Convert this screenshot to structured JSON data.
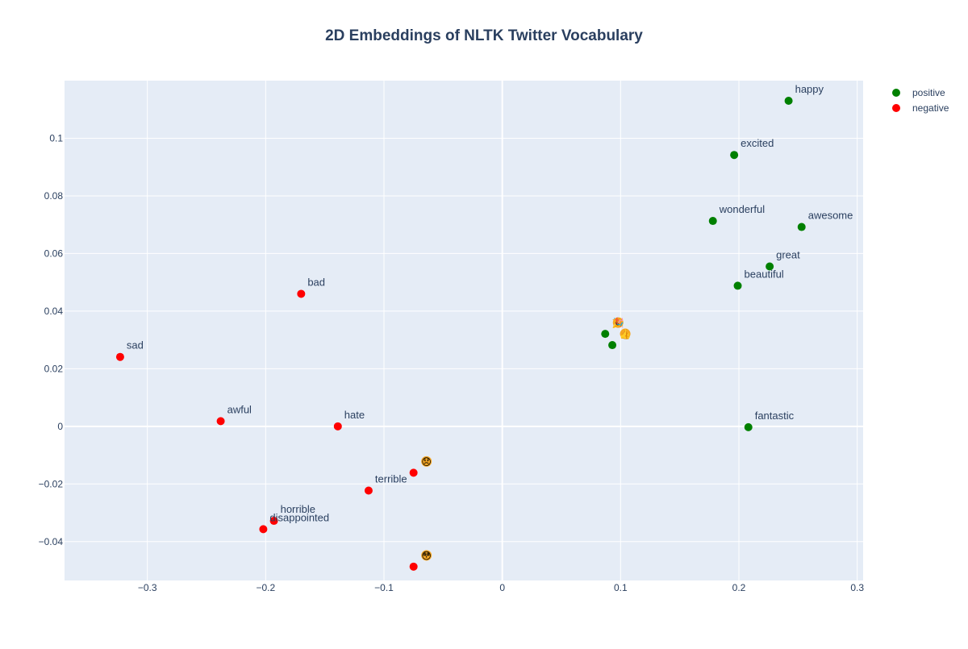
{
  "chart_data": {
    "type": "scatter",
    "title": "2D Embeddings of NLTK Twitter Vocabulary",
    "xlabel": "",
    "ylabel": "",
    "xlim": [
      -0.37,
      0.305
    ],
    "ylim": [
      -0.0535,
      0.12
    ],
    "x_ticks": [
      -0.3,
      -0.2,
      -0.1,
      0,
      0.1,
      0.2,
      0.3
    ],
    "x_tick_labels": [
      "−0.3",
      "−0.2",
      "−0.1",
      "0",
      "0.1",
      "0.2",
      "0.3"
    ],
    "y_ticks": [
      -0.04,
      -0.02,
      0,
      0.02,
      0.04,
      0.06,
      0.08,
      0.1
    ],
    "y_tick_labels": [
      "−0.04",
      "−0.02",
      "0",
      "0.02",
      "0.04",
      "0.06",
      "0.08",
      "0.1"
    ],
    "grid": true,
    "legend_position": "top-right",
    "colors": {
      "plot_bg": "#E5ECF6",
      "grid": "#ffffff",
      "text": "#2a3f5f",
      "emoji_face": "#F5A623"
    },
    "series": [
      {
        "name": "positive",
        "color": "#008000",
        "points": [
          {
            "label": "happy",
            "x": 0.242,
            "y": 0.113
          },
          {
            "label": "excited",
            "x": 0.196,
            "y": 0.0942
          },
          {
            "label": "wonderful",
            "x": 0.178,
            "y": 0.0713
          },
          {
            "label": "awesome",
            "x": 0.253,
            "y": 0.0692
          },
          {
            "label": "great",
            "x": 0.226,
            "y": 0.0555
          },
          {
            "label": "beautiful",
            "x": 0.199,
            "y": 0.0488
          },
          {
            "label": "🎉",
            "x": 0.087,
            "y": 0.0321
          },
          {
            "label": "👍",
            "x": 0.093,
            "y": 0.0282
          },
          {
            "label": "fantastic",
            "x": 0.208,
            "y": -0.0003
          }
        ]
      },
      {
        "name": "negative",
        "color": "#ff0000",
        "points": [
          {
            "label": "bad",
            "x": -0.17,
            "y": 0.046
          },
          {
            "label": "sad",
            "x": -0.323,
            "y": 0.0241
          },
          {
            "label": "awful",
            "x": -0.238,
            "y": 0.0018
          },
          {
            "label": "hate",
            "x": -0.139,
            "y": 0
          },
          {
            "label": "😞",
            "x": -0.075,
            "y": -0.0161
          },
          {
            "label": "terrible",
            "x": -0.113,
            "y": -0.0223
          },
          {
            "label": "horrible",
            "x": -0.193,
            "y": -0.0328
          },
          {
            "label": "disappointed",
            "x": -0.202,
            "y": -0.0357
          },
          {
            "label": "😳",
            "x": -0.075,
            "y": -0.0487
          }
        ]
      }
    ]
  }
}
